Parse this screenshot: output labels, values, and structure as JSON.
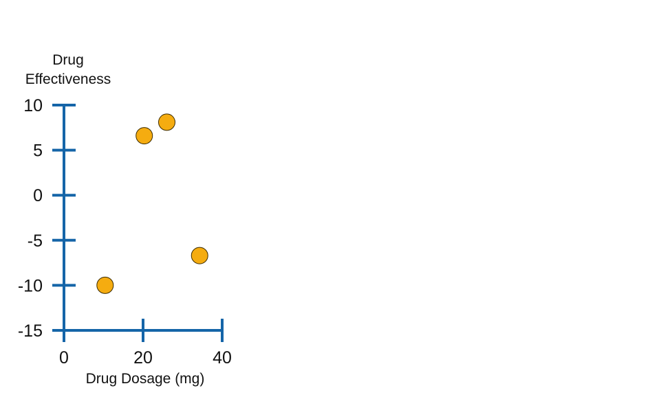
{
  "chart_data": {
    "type": "scatter",
    "title": "",
    "xlabel": "Drug Dosage (mg)",
    "ylabel_lines": [
      "Drug",
      "Effectiveness"
    ],
    "xlim": [
      0,
      40
    ],
    "ylim": [
      -15,
      10
    ],
    "xticks": [
      0,
      20,
      40
    ],
    "yticks": [
      10,
      5,
      0,
      -5,
      -10,
      -15
    ],
    "grid": false,
    "legend": "none",
    "colors": {
      "axis": "#1565a8",
      "marker_fill": "#f5ac10",
      "marker_stroke": "#3a2a00"
    },
    "points": [
      {
        "x": 10.4,
        "y": -10.0
      },
      {
        "x": 20.3,
        "y": 6.6
      },
      {
        "x": 26.0,
        "y": 8.1
      },
      {
        "x": 34.3,
        "y": -6.7
      }
    ]
  }
}
